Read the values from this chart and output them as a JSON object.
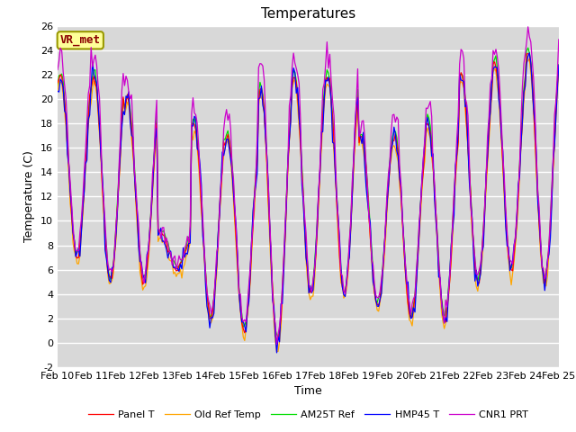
{
  "title": "Temperatures",
  "xlabel": "Time",
  "ylabel": "Temperature (C)",
  "ylim": [
    -2,
    26
  ],
  "yticks": [
    -2,
    0,
    2,
    4,
    6,
    8,
    10,
    12,
    14,
    16,
    18,
    20,
    22,
    24,
    26
  ],
  "x_labels": [
    "Feb 10",
    "Feb 11",
    "Feb 12",
    "Feb 13",
    "Feb 14",
    "Feb 15",
    "Feb 16",
    "Feb 17",
    "Feb 18",
    "Feb 19",
    "Feb 20",
    "Feb 21",
    "Feb 22",
    "Feb 23",
    "Feb 24",
    "Feb 25"
  ],
  "annotation_text": "VR_met",
  "annotation_color": "#8B0000",
  "annotation_bg": "#FFFF99",
  "bg_color": "#D8D8D8",
  "legend_entries": [
    "Panel T",
    "Old Ref Temp",
    "AM25T Ref",
    "HMP45 T",
    "CNR1 PRT"
  ],
  "line_colors": [
    "#FF0000",
    "#FFA500",
    "#00DD00",
    "#0000FF",
    "#CC00CC"
  ],
  "title_fontsize": 11,
  "axis_label_fontsize": 9,
  "tick_fontsize": 8
}
